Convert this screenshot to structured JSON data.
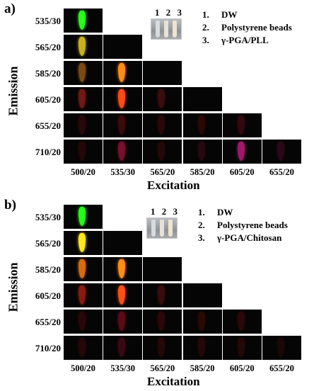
{
  "panels": [
    {
      "letter": "a)",
      "y_title": "Emission",
      "x_title": "Excitation",
      "rows": [
        "535/30",
        "565/20",
        "585/20",
        "605/20",
        "655/20",
        "710/20"
      ],
      "cols": [
        "500/20",
        "535/30",
        "565/20",
        "585/20",
        "605/20",
        "655/20"
      ],
      "legend": [
        {
          "num": "1.",
          "text": "DW"
        },
        {
          "num": "2.",
          "text": "Polystyrene beads"
        },
        {
          "num": "3.",
          "text": "γ-PGA/PLL"
        }
      ],
      "photo_numbers": "1 2 3",
      "spot_colors": {
        "0-0": "#26ff1a",
        "1-0": "#c8b21a",
        "2-0": "#7a4a12",
        "2-1": "#ff8a14",
        "3-0": "#6e1a12",
        "3-1": "#ff4a12",
        "3-2": "#3a0c0c",
        "4-0": "#2a0808",
        "4-1": "#3a0a0e",
        "4-2": "#2a0808",
        "4-3": "#2a0808",
        "4-4": "#330810",
        "5-0": "#240808",
        "5-1": "#7a0e30",
        "5-2": "#240808",
        "5-3": "#280810",
        "5-4": "#a0186a",
        "5-5": "#2a0818"
      }
    },
    {
      "letter": "b)",
      "y_title": "Emission",
      "x_title": "Excitation",
      "rows": [
        "535/30",
        "565/20",
        "585/20",
        "605/20",
        "655/20",
        "710/20"
      ],
      "cols": [
        "500/20",
        "535/30",
        "565/20",
        "585/20",
        "605/20",
        "655/20"
      ],
      "legend": [
        {
          "num": "1.",
          "text": "DW"
        },
        {
          "num": "2.",
          "text": "Polystyrene beads"
        },
        {
          "num": "3.",
          "text": "γ-PGA/Chitosan"
        }
      ],
      "photo_numbers": "1 2 3",
      "spot_colors": {
        "0-0": "#22ff14",
        "1-0": "#ffe81a",
        "2-0": "#d46a12",
        "2-1": "#ff8c14",
        "3-0": "#8a1a10",
        "3-1": "#ff5012",
        "3-2": "#3a0c0c",
        "4-0": "#2a0808",
        "4-1": "#5a0a18",
        "4-2": "#2a0808",
        "4-3": "#2a0808",
        "4-4": "#2a0808",
        "5-0": "#240808",
        "5-1": "#3a0814",
        "5-2": "#240808",
        "5-3": "#240808",
        "5-4": "#240808",
        "5-5": "#1a0808"
      }
    }
  ]
}
